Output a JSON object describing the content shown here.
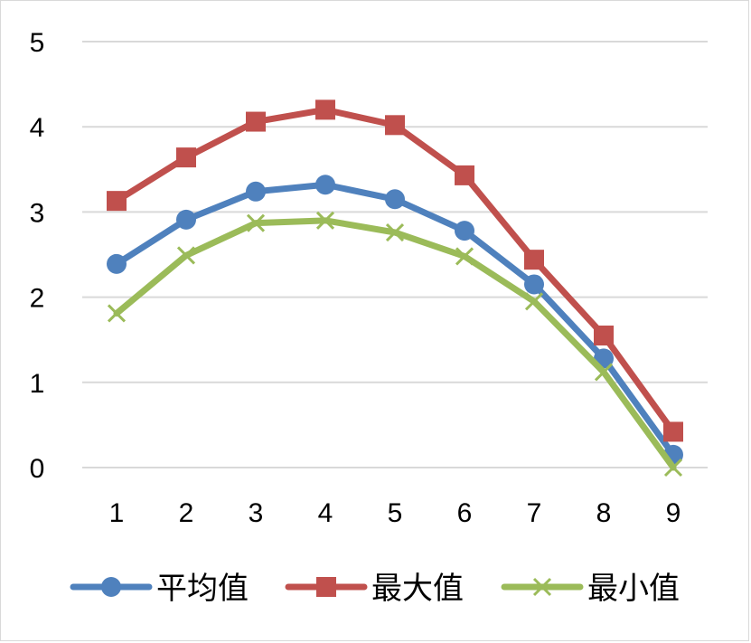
{
  "chart_data": {
    "type": "line",
    "title": "",
    "xlabel": "",
    "ylabel": "",
    "categories": [
      "1",
      "2",
      "3",
      "4",
      "5",
      "6",
      "7",
      "8",
      "9"
    ],
    "ylim": [
      0,
      5
    ],
    "yticks": [
      "0",
      "1",
      "2",
      "3",
      "4",
      "5"
    ],
    "grid": true,
    "legend_position": "bottom",
    "series": [
      {
        "name": "平均值",
        "color": "#4f81bd",
        "marker": "circle",
        "values": [
          2.39,
          2.91,
          3.24,
          3.32,
          3.15,
          2.78,
          2.15,
          1.28,
          0.15
        ]
      },
      {
        "name": "最大值",
        "color": "#c0504d",
        "marker": "square",
        "values": [
          3.13,
          3.64,
          4.06,
          4.2,
          4.02,
          3.43,
          2.44,
          1.55,
          0.42
        ]
      },
      {
        "name": "最小值",
        "color": "#9bbb59",
        "marker": "x",
        "values": [
          1.81,
          2.49,
          2.87,
          2.9,
          2.76,
          2.48,
          1.95,
          1.12,
          0.0
        ]
      }
    ]
  }
}
